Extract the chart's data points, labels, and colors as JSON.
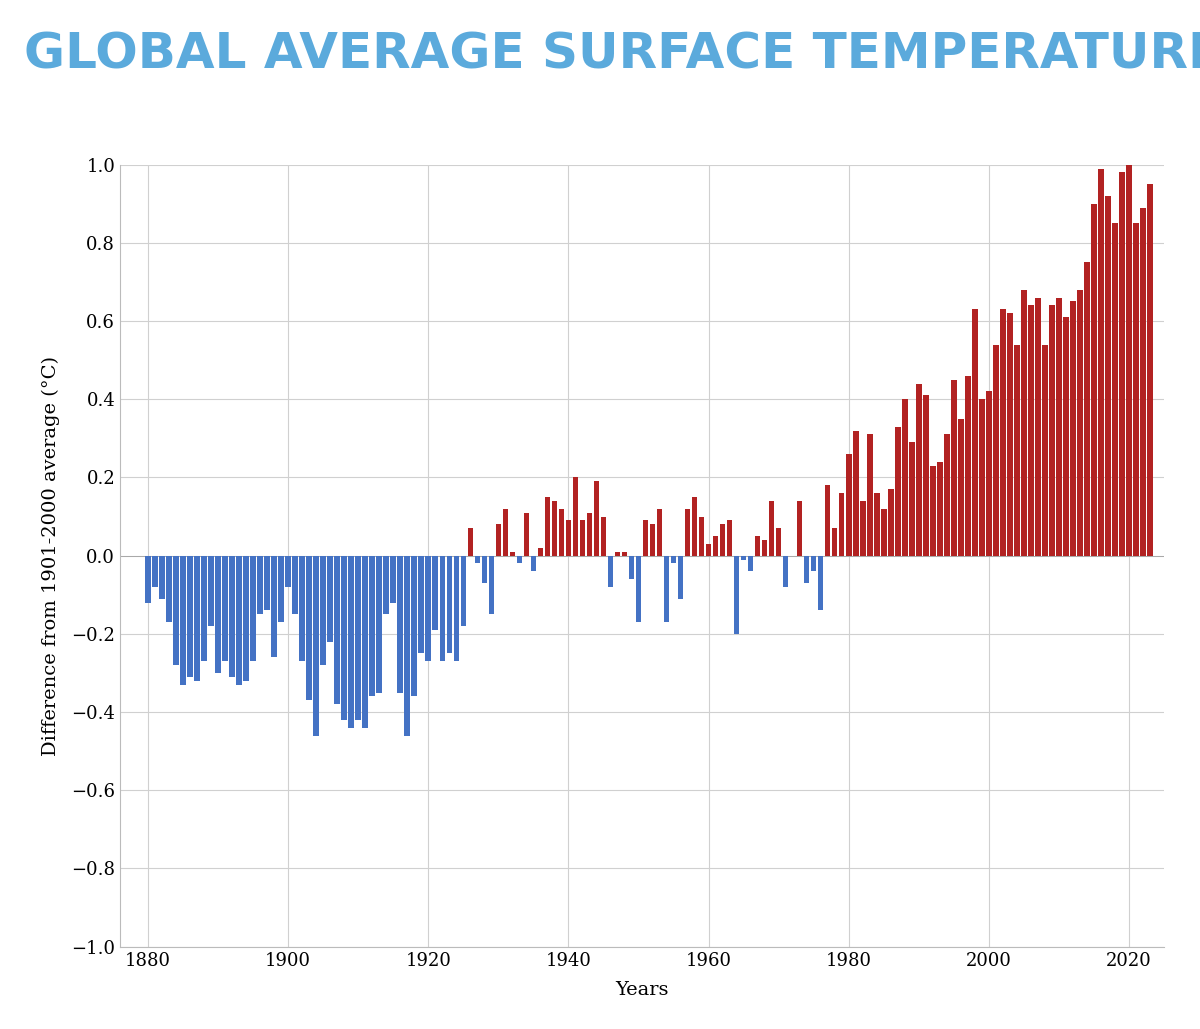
{
  "title": "GLOBAL AVERAGE SURFACE TEMPERATURE",
  "title_color": "#5BAADC",
  "xlabel": "Years",
  "ylabel": "Difference from 1901-2000 average (°C)",
  "ylim": [
    -1.0,
    1.0
  ],
  "xlim": [
    1876,
    2025
  ],
  "yticks": [
    -1.0,
    -0.8,
    -0.6,
    -0.4,
    -0.2,
    0.0,
    0.2,
    0.4,
    0.6,
    0.8,
    1.0
  ],
  "xticks": [
    1880,
    1900,
    1920,
    1940,
    1960,
    1980,
    2000,
    2020
  ],
  "background_color": "#ffffff",
  "grid_color": "#d0d0d0",
  "bar_color_pos": "#B22222",
  "bar_color_neg": "#4472C4",
  "title_fontsize": 36,
  "axis_fontsize": 14,
  "tick_fontsize": 13,
  "years": [
    1880,
    1881,
    1882,
    1883,
    1884,
    1885,
    1886,
    1887,
    1888,
    1889,
    1890,
    1891,
    1892,
    1893,
    1894,
    1895,
    1896,
    1897,
    1898,
    1899,
    1900,
    1901,
    1902,
    1903,
    1904,
    1905,
    1906,
    1907,
    1908,
    1909,
    1910,
    1911,
    1912,
    1913,
    1914,
    1915,
    1916,
    1917,
    1918,
    1919,
    1920,
    1921,
    1922,
    1923,
    1924,
    1925,
    1926,
    1927,
    1928,
    1929,
    1930,
    1931,
    1932,
    1933,
    1934,
    1935,
    1936,
    1937,
    1938,
    1939,
    1940,
    1941,
    1942,
    1943,
    1944,
    1945,
    1946,
    1947,
    1948,
    1949,
    1950,
    1951,
    1952,
    1953,
    1954,
    1955,
    1956,
    1957,
    1958,
    1959,
    1960,
    1961,
    1962,
    1963,
    1964,
    1965,
    1966,
    1967,
    1968,
    1969,
    1970,
    1971,
    1972,
    1973,
    1974,
    1975,
    1976,
    1977,
    1978,
    1979,
    1980,
    1981,
    1982,
    1983,
    1984,
    1985,
    1986,
    1987,
    1988,
    1989,
    1990,
    1991,
    1992,
    1993,
    1994,
    1995,
    1996,
    1997,
    1998,
    1999,
    2000,
    2001,
    2002,
    2003,
    2004,
    2005,
    2006,
    2007,
    2008,
    2009,
    2010,
    2011,
    2012,
    2013,
    2014,
    2015,
    2016,
    2017,
    2018,
    2019,
    2020,
    2021,
    2022,
    2023
  ],
  "anomalies": [
    -0.12,
    -0.08,
    -0.11,
    -0.17,
    -0.28,
    -0.33,
    -0.31,
    -0.32,
    -0.27,
    -0.18,
    -0.3,
    -0.27,
    -0.31,
    -0.33,
    -0.32,
    -0.27,
    -0.15,
    -0.14,
    -0.26,
    -0.17,
    -0.08,
    -0.15,
    -0.27,
    -0.37,
    -0.46,
    -0.28,
    -0.22,
    -0.38,
    -0.42,
    -0.44,
    -0.42,
    -0.44,
    -0.36,
    -0.35,
    -0.15,
    -0.12,
    -0.35,
    -0.46,
    -0.36,
    -0.25,
    -0.27,
    -0.19,
    -0.27,
    -0.25,
    -0.27,
    -0.18,
    0.07,
    -0.02,
    -0.07,
    -0.15,
    0.08,
    0.12,
    0.01,
    -0.02,
    0.11,
    -0.04,
    0.02,
    0.15,
    0.14,
    0.12,
    0.09,
    0.2,
    0.09,
    0.11,
    0.19,
    0.1,
    -0.08,
    0.01,
    0.01,
    -0.06,
    -0.17,
    0.09,
    0.08,
    0.12,
    -0.17,
    -0.02,
    -0.11,
    0.12,
    0.15,
    0.1,
    0.03,
    0.05,
    0.08,
    0.09,
    -0.2,
    -0.01,
    -0.04,
    0.05,
    0.04,
    0.14,
    0.07,
    -0.08,
    0.0,
    0.14,
    -0.07,
    -0.04,
    -0.14,
    0.18,
    0.07,
    0.16,
    0.26,
    0.32,
    0.14,
    0.31,
    0.16,
    0.12,
    0.17,
    0.33,
    0.4,
    0.29,
    0.44,
    0.41,
    0.23,
    0.24,
    0.31,
    0.45,
    0.35,
    0.46,
    0.63,
    0.4,
    0.42,
    0.54,
    0.63,
    0.62,
    0.54,
    0.68,
    0.64,
    0.66,
    0.54,
    0.64,
    0.66,
    0.61,
    0.65,
    0.68,
    0.75,
    0.9,
    0.99,
    0.92,
    0.85,
    0.98,
    1.0,
    0.85,
    0.89,
    0.95
  ]
}
